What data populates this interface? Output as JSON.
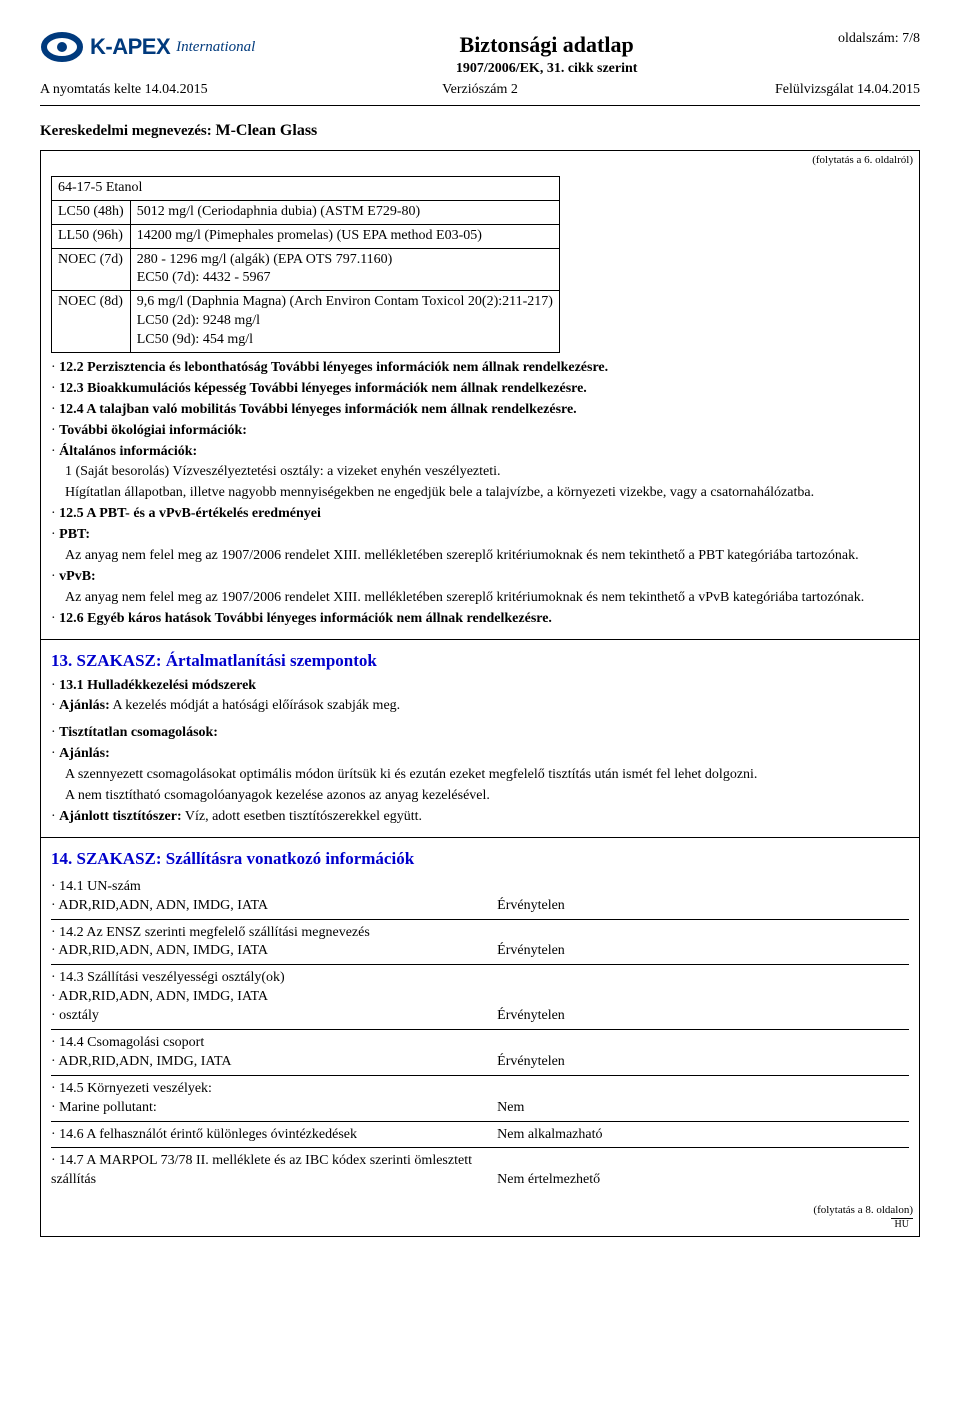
{
  "header": {
    "logo_main": "K-APEX",
    "logo_sub": "International",
    "page_label": "oldalszám: 7/8",
    "title": "Biztonsági adatlap",
    "subtitle": "1907/2006/EK, 31. cikk szerint",
    "print_date": "A nyomtatás kelte 14.04.2015",
    "version": "Verziószám 2",
    "revision": "Felülvizsgálat 14.04.2015",
    "trade_label": "Kereskedelmi megnevezés:",
    "trade_value": "M-Clean Glass"
  },
  "cont_from": "(folytatás a 6. oldalról)",
  "tox": {
    "substance": "64-17-5 Etanol",
    "rows": [
      {
        "c0": "LC50 (48h)",
        "c1": "5012 mg/l (Ceriodaphnia dubia) (ASTM E729-80)"
      },
      {
        "c0": "LL50 (96h)",
        "c1": "14200 mg/l (Pimephales promelas) (US EPA method E03-05)"
      },
      {
        "c0": "NOEC (7d)",
        "c1": "280 - 1296 mg/l (algák) (EPA OTS 797.1160)\nEC50 (7d):  4432 - 5967"
      },
      {
        "c0": "NOEC (8d)",
        "c1": "9,6 mg/l (Daphnia Magna) (Arch Environ Contam Toxicol 20(2):211-217)\nLC50 (2d): 9248 mg/l\nLC50 (9d):   454 mg/l"
      }
    ]
  },
  "body12": {
    "p122": "12.2 Perzisztencia és lebonthatóság További lényeges információk nem állnak rendelkezésre.",
    "p123": "12.3 Bioakkumulációs képesség További lényeges információk nem állnak rendelkezésre.",
    "p124": "12.4 A talajban való mobilitás További lényeges információk nem állnak rendelkezésre.",
    "eco_label": "További ökológiai információk:",
    "gen_label": "Általános információk:",
    "gen1": "1 (Saját besorolás) Vízveszélyeztetési osztály: a vizeket enyhén veszélyezteti.",
    "gen2": "Hígítatlan állapotban, illetve nagyobb mennyiségekben ne engedjük bele a talajvízbe, a környezeti vizekbe, vagy a csatornahálózatba.",
    "p125": "12.5 A PBT- és a vPvB-értékelés eredményei",
    "pbt_label": "PBT:",
    "pbt_text": "Az anyag nem felel meg az 1907/2006 rendelet XIII. mellékletében szereplő kritériumoknak és nem tekinthető a PBT kategóriába tartozónak.",
    "vpvb_label": "vPvB:",
    "vpvb_text": "Az anyag nem felel meg az 1907/2006 rendelet XIII. mellékletében szereplő kritériumoknak és nem tekinthető a vPvB kategóriába tartozónak.",
    "p126": "12.6 Egyéb káros hatások További lényeges információk nem állnak rendelkezésre."
  },
  "sec13": {
    "title": "13. SZAKASZ: Ártalmatlanítási szempontok",
    "p131": "13.1 Hulladékkezelési módszerek",
    "rec_label": "Ajánlás:",
    "rec_text": "A kezelés módját a hatósági előírások szabják meg.",
    "pack_label": "Tisztítatlan csomagolások:",
    "rec2_label": "Ajánlás:",
    "rec2a": "A szennyezett csomagolásokat optimális módon ürítsük ki és ezután ezeket megfelelő tisztítás után ismét fel lehet dolgozni.",
    "rec2b": "A nem tisztítható csomagolóanyagok kezelése azonos az anyag kezelésével.",
    "clean_label": "Ajánlott tisztítószer:",
    "clean_text": "Víz, adott esetben tisztítószerekkel együtt."
  },
  "sec14": {
    "title": "14. SZAKASZ: Szállításra vonatkozó információk",
    "rows": [
      {
        "l1": "14.1 UN-szám",
        "l2": "ADR,RID,ADN, ADN, IMDG, IATA",
        "v": "Érvénytelen"
      },
      {
        "l1": "14.2 Az ENSZ szerinti megfelelő szállítási megnevezés",
        "l2": "ADR,RID,ADN, ADN, IMDG, IATA",
        "v": "Érvénytelen"
      },
      {
        "l1": "14.3 Szállítási veszélyességi osztály(ok)",
        "l2": "ADR,RID,ADN, ADN, IMDG, IATA",
        "l3": "osztály",
        "v": "Érvénytelen"
      },
      {
        "l1": "14.4 Csomagolási csoport",
        "l2": "ADR,RID,ADN, IMDG, IATA",
        "v": "Érvénytelen"
      },
      {
        "l1": "14.5 Környezeti veszélyek:",
        "l2": "Marine pollutant:",
        "v": "Nem"
      },
      {
        "l1": "14.6 A felhasználót érintő különleges óvintézkedések",
        "v": "Nem alkalmazható"
      },
      {
        "l1": "14.7 A MARPOL 73/78 II. melléklete és az IBC kódex szerinti ömlesztett szállítás",
        "v": "Nem értelmezhető"
      }
    ]
  },
  "cont_to": "(folytatás a 8. oldalon)",
  "hu": "HU"
}
